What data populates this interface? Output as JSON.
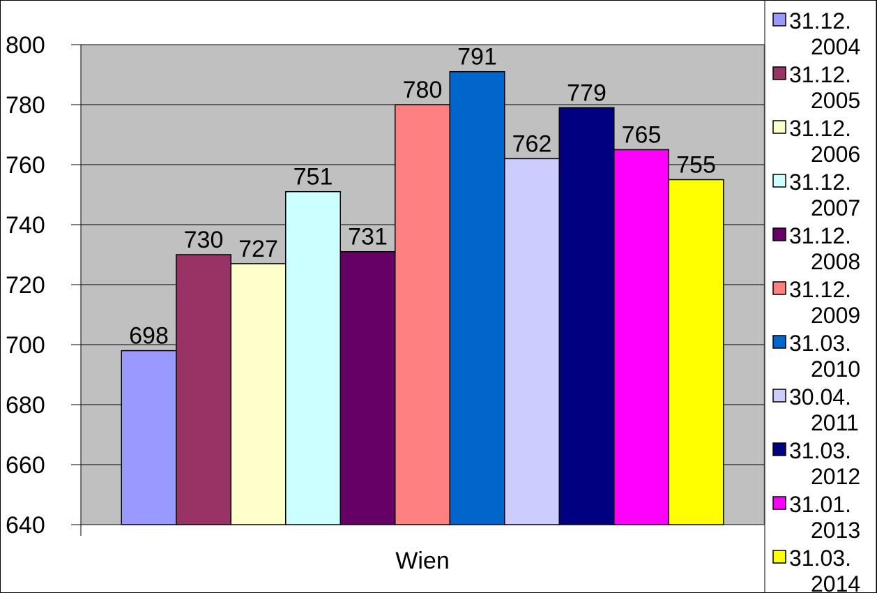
{
  "chart_data": {
    "type": "bar",
    "categories": [
      "Wien"
    ],
    "xlabel": "",
    "ylabel": "",
    "ylim": [
      640,
      800
    ],
    "y_ticks": [
      640,
      660,
      680,
      700,
      720,
      740,
      760,
      780,
      800
    ],
    "grid": true,
    "legend_position": "right",
    "series": [
      {
        "name": "31.12. 2004",
        "values": [
          698
        ],
        "color": "#9999ff"
      },
      {
        "name": "31.12. 2005",
        "values": [
          730
        ],
        "color": "#993366"
      },
      {
        "name": "31.12. 2006",
        "values": [
          727
        ],
        "color": "#ffffcc"
      },
      {
        "name": "31.12. 2007",
        "values": [
          751
        ],
        "color": "#ccffff"
      },
      {
        "name": "31.12. 2008",
        "values": [
          731
        ],
        "color": "#660066"
      },
      {
        "name": "31.12. 2009",
        "values": [
          780
        ],
        "color": "#ff8080"
      },
      {
        "name": "31.03. 2010",
        "values": [
          791
        ],
        "color": "#0066cc"
      },
      {
        "name": "30.04. 2011",
        "values": [
          762
        ],
        "color": "#ccccff"
      },
      {
        "name": "31.03. 2012",
        "values": [
          779
        ],
        "color": "#000080"
      },
      {
        "name": "31.01. 2013",
        "values": [
          765
        ],
        "color": "#ff00ff"
      },
      {
        "name": "31.03. 2014",
        "values": [
          755
        ],
        "color": "#ffff00"
      }
    ],
    "plot_background": "#c0c0c0"
  }
}
